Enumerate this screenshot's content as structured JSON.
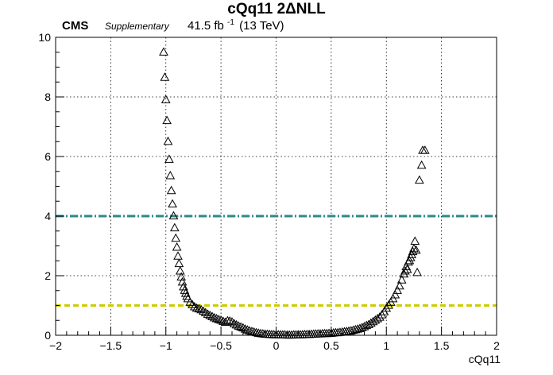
{
  "header": {
    "title": "cQq11 2ΔNLL",
    "experiment": "CMS",
    "status": "Supplementary",
    "lumi_value": "41.5 fb",
    "lumi_exp": "-1",
    "energy": "(13 TeV)"
  },
  "chart_data": {
    "type": "scatter",
    "title": "cQq11 2ΔNLL",
    "xlabel": "cQq11",
    "ylabel": "",
    "xlim": [
      -2,
      2
    ],
    "ylim": [
      0,
      10
    ],
    "grid": true,
    "x_ticks": [
      -2,
      -1.5,
      -1,
      -0.5,
      0,
      0.5,
      1,
      1.5,
      2
    ],
    "x_tick_labels": [
      "−2",
      "−1.5",
      "−1",
      "−0.5",
      "0",
      "0.5",
      "1",
      "1.5",
      "2"
    ],
    "y_ticks": [
      0,
      2,
      4,
      6,
      8,
      10
    ],
    "y_tick_labels": [
      "0",
      "2",
      "4",
      "6",
      "8",
      "10"
    ],
    "marker": "open-triangle",
    "reference_lines": [
      {
        "y": 4,
        "color": "#2a8a8a",
        "style": "dash-dot"
      },
      {
        "y": 1,
        "color": "#cccc00",
        "style": "dashed"
      }
    ],
    "series": [
      {
        "x": [
          -1.02,
          -1.01,
          -1.0,
          -0.99,
          -0.98,
          -0.97,
          -0.96,
          -0.95,
          -0.94,
          -0.93,
          -0.92,
          -0.91,
          -0.9,
          -0.89,
          -0.88,
          -0.87,
          -0.86,
          -0.85,
          -0.84,
          -0.83,
          -0.82,
          -0.81,
          -0.8,
          -0.78,
          -0.76,
          -0.74,
          -0.72,
          -0.7,
          -0.68,
          -0.66,
          -0.64,
          -0.62,
          -0.6,
          -0.58,
          -0.56,
          -0.54,
          -0.52,
          -0.5,
          -0.48,
          -0.46,
          -0.44,
          -0.42,
          -0.4,
          -0.38,
          -0.36,
          -0.34,
          -0.32,
          -0.3,
          -0.28,
          -0.26,
          -0.24,
          -0.22,
          -0.2,
          -0.18,
          -0.16,
          -0.14,
          -0.12,
          -0.1,
          -0.08,
          -0.06,
          -0.04,
          -0.02,
          0.0,
          0.02,
          0.04,
          0.06,
          0.08,
          0.1,
          0.12,
          0.14,
          0.16,
          0.18,
          0.2,
          0.22,
          0.24,
          0.26,
          0.28,
          0.3,
          0.32,
          0.34,
          0.36,
          0.38,
          0.4,
          0.42,
          0.44,
          0.46,
          0.48,
          0.5,
          0.52,
          0.54,
          0.56,
          0.58,
          0.6,
          0.62,
          0.64,
          0.66,
          0.68,
          0.7,
          0.72,
          0.74,
          0.76,
          0.78,
          0.8,
          0.82,
          0.84,
          0.86,
          0.88,
          0.9,
          0.92,
          0.94,
          0.96,
          0.98,
          1.0,
          1.02,
          1.04,
          1.06,
          1.08,
          1.1,
          1.12,
          1.14,
          1.16,
          1.17,
          1.18,
          1.19,
          1.2,
          1.21,
          1.22,
          1.23,
          1.24,
          1.25,
          1.26,
          1.27,
          1.28,
          1.3,
          1.32,
          1.33,
          1.35
        ],
        "y": [
          9.5,
          8.65,
          7.9,
          7.2,
          6.5,
          5.9,
          5.35,
          4.85,
          4.4,
          4.0,
          3.6,
          3.25,
          2.95,
          2.65,
          2.4,
          2.15,
          1.95,
          1.78,
          1.62,
          1.5,
          1.4,
          1.3,
          1.22,
          1.1,
          1.02,
          0.95,
          0.9,
          0.88,
          0.85,
          0.8,
          0.75,
          0.7,
          0.66,
          0.62,
          0.58,
          0.55,
          0.52,
          0.5,
          0.46,
          0.43,
          0.48,
          0.47,
          0.44,
          0.38,
          0.34,
          0.3,
          0.27,
          0.24,
          0.2,
          0.17,
          0.14,
          0.12,
          0.1,
          0.08,
          0.06,
          0.05,
          0.04,
          0.03,
          0.025,
          0.02,
          0.015,
          0.01,
          0.01,
          0.01,
          0.01,
          0.005,
          0.005,
          0.0,
          0.0,
          0.0,
          0.005,
          0.005,
          0.01,
          0.01,
          0.01,
          0.015,
          0.02,
          0.02,
          0.025,
          0.03,
          0.035,
          0.04,
          0.04,
          0.045,
          0.05,
          0.05,
          0.055,
          0.06,
          0.07,
          0.08,
          0.08,
          0.09,
          0.1,
          0.11,
          0.12,
          0.13,
          0.14,
          0.16,
          0.18,
          0.2,
          0.22,
          0.25,
          0.28,
          0.32,
          0.35,
          0.4,
          0.45,
          0.5,
          0.55,
          0.6,
          0.68,
          0.78,
          0.9,
          1.0,
          1.1,
          1.22,
          1.35,
          1.5,
          1.65,
          1.85,
          2.05,
          2.15,
          2.3,
          2.2,
          2.45,
          2.5,
          2.6,
          2.7,
          2.8,
          2.9,
          3.15,
          2.85,
          2.1,
          5.2,
          5.7,
          6.2,
          6.2
        ]
      }
    ]
  }
}
